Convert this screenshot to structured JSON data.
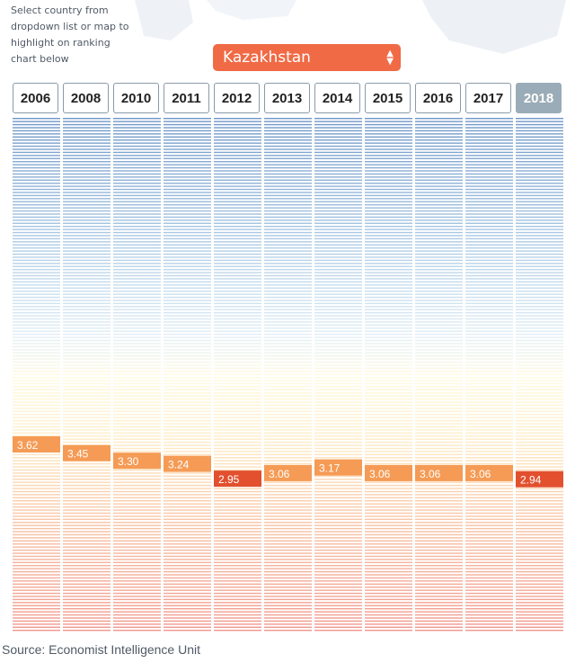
{
  "controls": {
    "instructions": "Select country from dropdown list or map to highlight on ranking chart below",
    "selected_country": "Kazakhstan",
    "select_arrows": "▲▼"
  },
  "source": "Source: Economist Intelligence Unit",
  "colors": {
    "highlight_orange": "#f59b55",
    "highlight_red": "#e2502e",
    "dropdown": "#f06a45",
    "active_year": "#9aacb7"
  },
  "chart_data": {
    "type": "bar",
    "title": "",
    "categories": [
      "2006",
      "2008",
      "2010",
      "2011",
      "2012",
      "2013",
      "2014",
      "2015",
      "2016",
      "2017",
      "2018"
    ],
    "active_year": "2018",
    "highlighted_country": "Kazakhstan",
    "series": [
      {
        "name": "Kazakhstan",
        "values": [
          3.62,
          3.45,
          3.3,
          3.24,
          2.95,
          3.06,
          3.17,
          3.06,
          3.06,
          3.06,
          2.94
        ],
        "labels": [
          "3.62",
          "3.45",
          "3.30",
          "3.24",
          "2.95",
          "3.06",
          "3.17",
          "3.06",
          "3.06",
          "3.06",
          "2.94"
        ],
        "colors": [
          "orange",
          "orange",
          "orange",
          "orange",
          "red",
          "orange",
          "orange",
          "orange",
          "orange",
          "orange",
          "red"
        ]
      }
    ],
    "ylim": [
      0,
      10
    ],
    "y_direction": "descending-down",
    "grid": true
  }
}
